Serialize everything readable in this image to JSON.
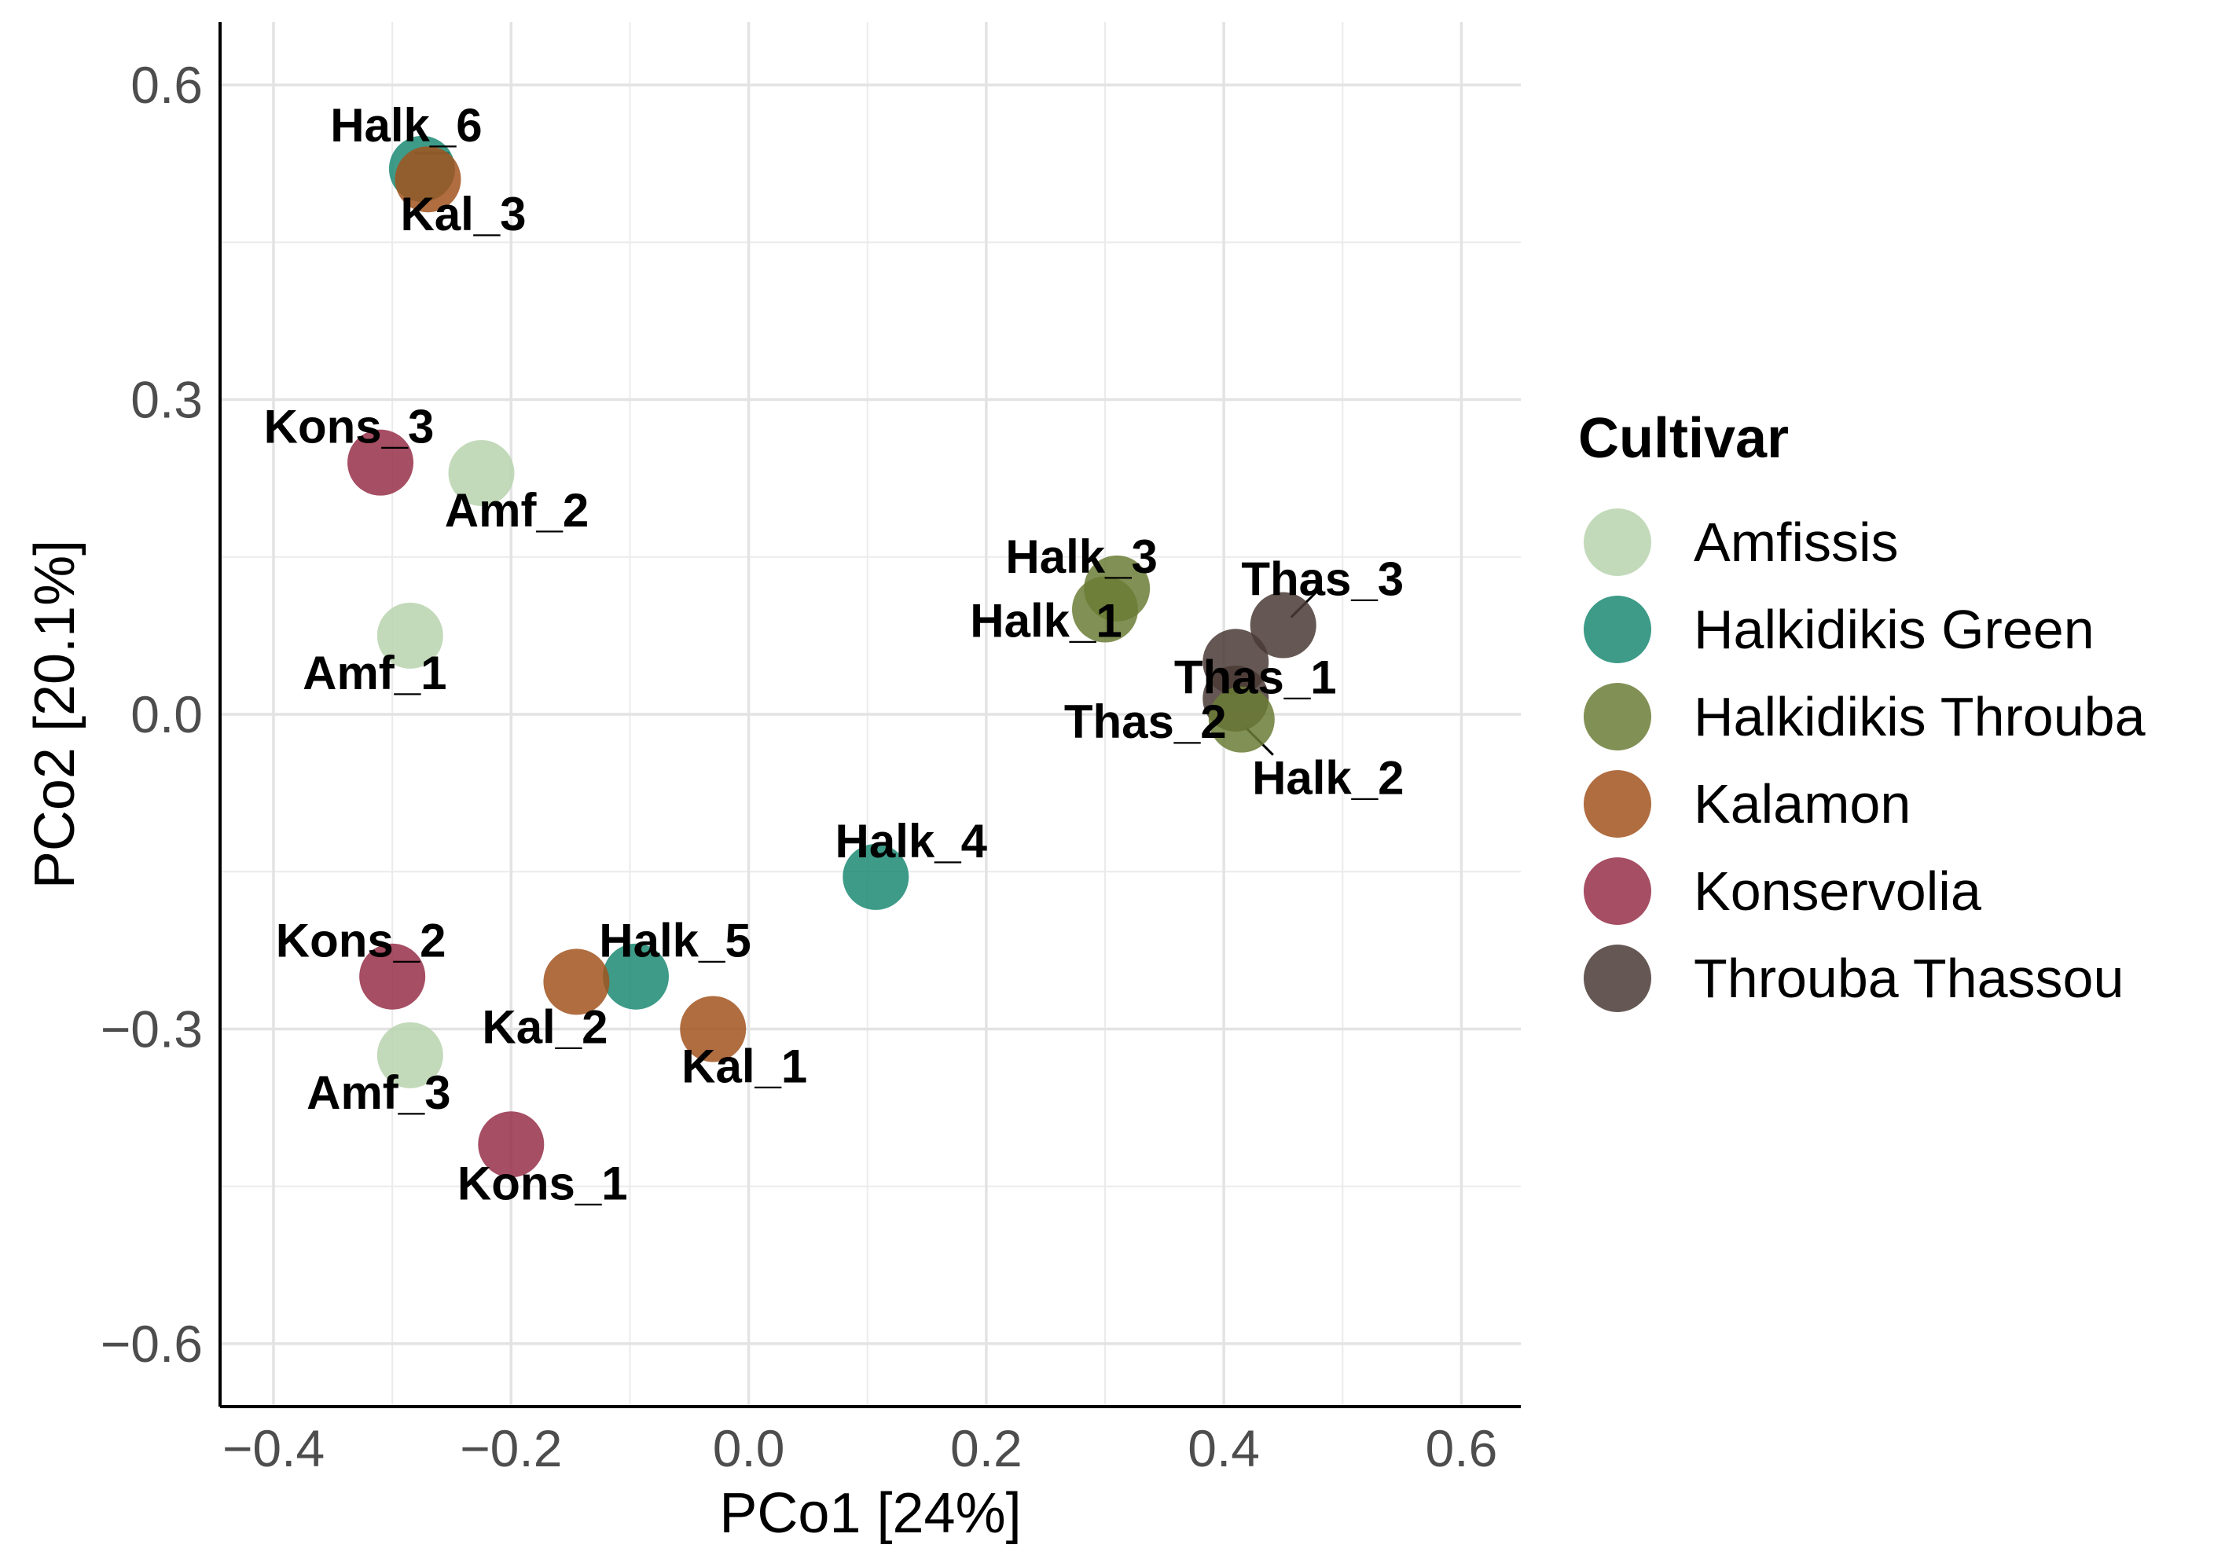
{
  "chart_data": {
    "type": "scatter",
    "title": "",
    "xlabel": "PCo1 [24%]",
    "ylabel": "PCo2 [20.1%]",
    "xlim": [
      -0.445,
      0.65
    ],
    "ylim": [
      -0.66,
      0.66
    ],
    "x_ticks": [
      -0.4,
      -0.2,
      0.0,
      0.2,
      0.4,
      0.6
    ],
    "y_ticks": [
      -0.6,
      -0.3,
      0.0,
      0.3,
      0.6
    ],
    "x_tick_labels": [
      "−0.4",
      "−0.2",
      "0.0",
      "0.2",
      "0.4",
      "0.6"
    ],
    "y_tick_labels": [
      "−0.6",
      "−0.3",
      "0.0",
      "0.3",
      "0.6"
    ],
    "grid": true,
    "legend": {
      "title": "Cultivar",
      "placement": "right",
      "entries": [
        {
          "name": "Amfissis",
          "color": "#b8d4ae"
        },
        {
          "name": "Halkidikis Green",
          "color": "#1b8a73"
        },
        {
          "name": "Halkidikis Throuba",
          "color": "#6b7c36"
        },
        {
          "name": "Kalamon",
          "color": "#a2531e"
        },
        {
          "name": "Konservolia",
          "color": "#962f48"
        },
        {
          "name": "Throuba Thassou",
          "color": "#4a3a35"
        }
      ]
    },
    "points": [
      {
        "label": "Halk_6",
        "group": "Halkidikis Green",
        "x": -0.275,
        "y": 0.52
      },
      {
        "label": "Kal_3",
        "group": "Kalamon",
        "x": -0.27,
        "y": 0.51
      },
      {
        "label": "Kons_3",
        "group": "Konservolia",
        "x": -0.31,
        "y": 0.24
      },
      {
        "label": "Amf_2",
        "group": "Amfissis",
        "x": -0.225,
        "y": 0.23
      },
      {
        "label": "Amf_1",
        "group": "Amfissis",
        "x": -0.285,
        "y": 0.075
      },
      {
        "label": "Halk_3",
        "group": "Halkidikis Throuba",
        "x": 0.31,
        "y": 0.12
      },
      {
        "label": "Halk_1",
        "group": "Halkidikis Throuba",
        "x": 0.3,
        "y": 0.1
      },
      {
        "label": "Thas_3",
        "group": "Throuba Thassou",
        "x": 0.45,
        "y": 0.085
      },
      {
        "label": "Thas_1",
        "group": "Throuba Thassou",
        "x": 0.41,
        "y": 0.05
      },
      {
        "label": "Thas_2",
        "group": "Throuba Thassou",
        "x": 0.41,
        "y": 0.015
      },
      {
        "label": "Halk_2",
        "group": "Halkidikis Throuba",
        "x": 0.415,
        "y": -0.005
      },
      {
        "label": "Halk_4",
        "group": "Halkidikis Green",
        "x": 0.107,
        "y": -0.155
      },
      {
        "label": "Kons_2",
        "group": "Konservolia",
        "x": -0.3,
        "y": -0.25
      },
      {
        "label": "Halk_5",
        "group": "Halkidikis Green",
        "x": -0.095,
        "y": -0.25
      },
      {
        "label": "Kal_2",
        "group": "Kalamon",
        "x": -0.145,
        "y": -0.255
      },
      {
        "label": "Kal_1",
        "group": "Kalamon",
        "x": -0.03,
        "y": -0.3
      },
      {
        "label": "Amf_3",
        "group": "Amfissis",
        "x": -0.285,
        "y": -0.325
      },
      {
        "label": "Kons_1",
        "group": "Konservolia",
        "x": -0.2,
        "y": -0.41
      }
    ]
  }
}
